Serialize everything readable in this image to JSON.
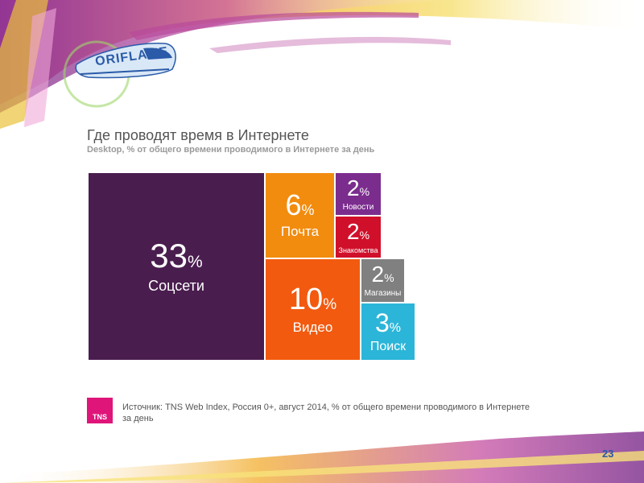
{
  "logo": {
    "text": "ORIFLAME"
  },
  "slide": {
    "title": "Где проводят время в Интернете",
    "subtitle": "Desktop, % от общего времени проводимого в Интернете за день",
    "source": "Источник: TNS Web Index, Россия 0+, август 2014, % от общего времени проводимого в Интернете за день",
    "page_number": "23"
  },
  "tns_logo": {
    "text": "TNS"
  },
  "colors": {
    "purple": "#4a1d4f",
    "orange": "#f28c0f",
    "red_orange": "#f25a0f",
    "violet": "#7b2d8e",
    "crimson": "#d0102a",
    "gray": "#808080",
    "cyan": "#2bb5d8",
    "tns_pink": "#e0157a",
    "accent_blue": "#2a5aa8"
  },
  "chart_data": {
    "type": "treemap",
    "unit": "%",
    "items": [
      {
        "label": "Соцсети",
        "value": 33,
        "value_text": "33",
        "color": "#4a1d4f"
      },
      {
        "label": "Почта",
        "value": 6,
        "value_text": "6",
        "color": "#f28c0f"
      },
      {
        "label": "Видео",
        "value": 10,
        "value_text": "10",
        "color": "#f25a0f"
      },
      {
        "label": "Новости",
        "value": 2,
        "value_text": "2",
        "color": "#7b2d8e"
      },
      {
        "label": "Знакомства",
        "value": 2,
        "value_text": "2",
        "color": "#d0102a"
      },
      {
        "label": "Магазины",
        "value": 2,
        "value_text": "2",
        "color": "#808080"
      },
      {
        "label": "Поиск",
        "value": 3,
        "value_text": "3",
        "color": "#2bb5d8"
      }
    ]
  }
}
